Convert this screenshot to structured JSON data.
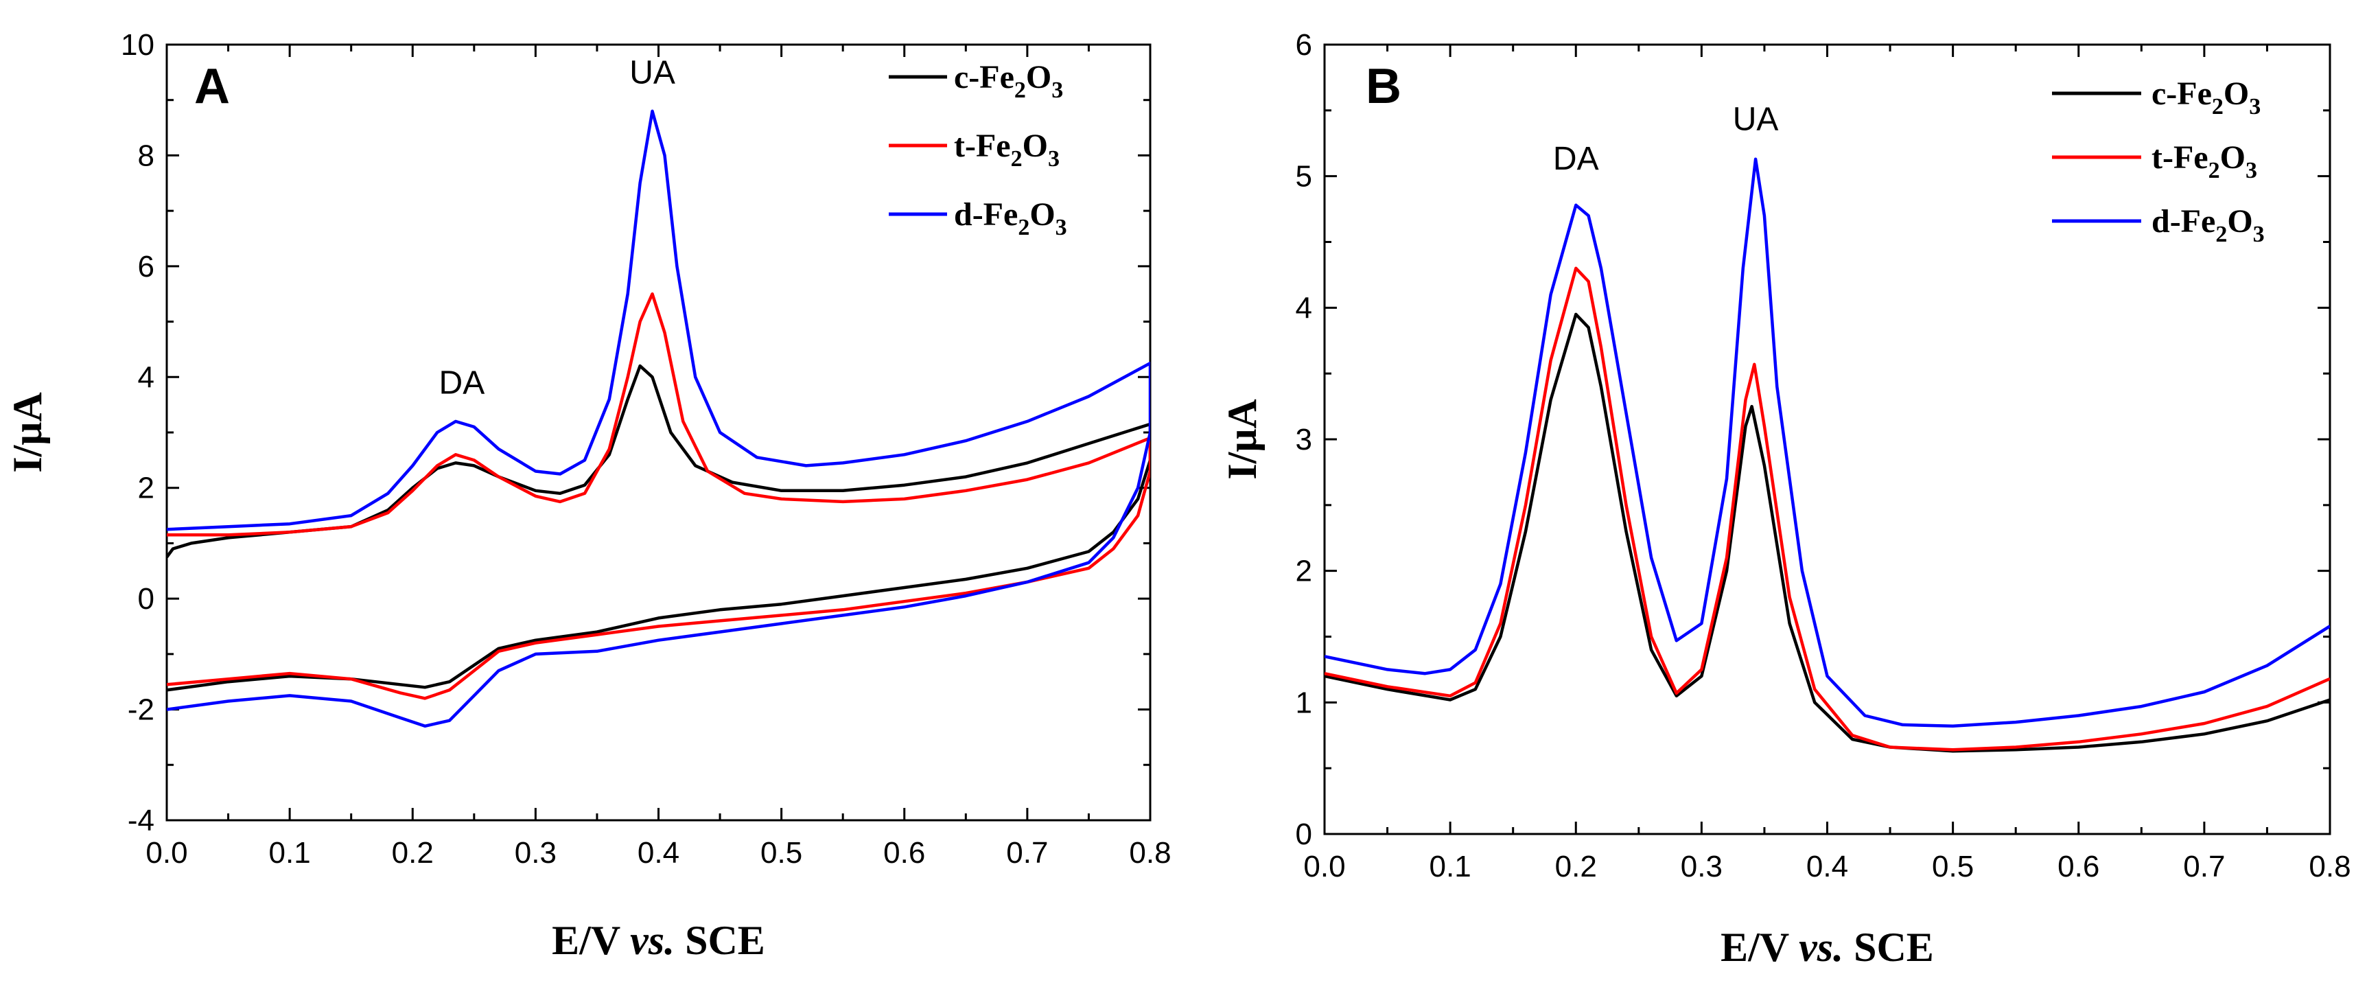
{
  "chart_data": [
    {
      "type": "line",
      "panel_label": "A",
      "xlabel": {
        "prefix": "E/V ",
        "italic": "vs.",
        "suffix": " SCE"
      },
      "ylabel": "I/μA",
      "xlim": [
        0.0,
        0.8
      ],
      "ylim": [
        -4,
        10
      ],
      "xticks": [
        0.0,
        0.1,
        0.2,
        0.3,
        0.4,
        0.5,
        0.6,
        0.7,
        0.8
      ],
      "yticks": [
        -4,
        -2,
        0,
        2,
        4,
        6,
        8,
        10
      ],
      "xtick_labels": [
        "0.0",
        "0.1",
        "0.2",
        "0.3",
        "0.4",
        "0.5",
        "0.6",
        "0.7",
        "0.8"
      ],
      "ytick_labels": [
        "-4",
        "-2",
        "0",
        "2",
        "4",
        "6",
        "8",
        "10"
      ],
      "legend_position": "top-right",
      "annotations": [
        {
          "text": "DA",
          "x": 0.24,
          "y": 3.7
        },
        {
          "text": "UA",
          "x": 0.395,
          "y": 9.3
        }
      ],
      "series": [
        {
          "name": "c-Fe2O3",
          "legend_main": "c-Fe",
          "legend_sub1": "2",
          "legend_mid": "O",
          "legend_sub2": "3",
          "color": "#000000",
          "forward": [
            [
              0.0,
              0.75
            ],
            [
              0.005,
              0.9
            ],
            [
              0.02,
              1.0
            ],
            [
              0.05,
              1.1
            ],
            [
              0.1,
              1.2
            ],
            [
              0.15,
              1.3
            ],
            [
              0.18,
              1.6
            ],
            [
              0.2,
              2.0
            ],
            [
              0.22,
              2.35
            ],
            [
              0.235,
              2.45
            ],
            [
              0.25,
              2.4
            ],
            [
              0.27,
              2.2
            ],
            [
              0.3,
              1.95
            ],
            [
              0.32,
              1.9
            ],
            [
              0.34,
              2.05
            ],
            [
              0.36,
              2.6
            ],
            [
              0.375,
              3.6
            ],
            [
              0.385,
              4.2
            ],
            [
              0.395,
              4.0
            ],
            [
              0.41,
              3.0
            ],
            [
              0.43,
              2.4
            ],
            [
              0.46,
              2.1
            ],
            [
              0.5,
              1.95
            ],
            [
              0.55,
              1.95
            ],
            [
              0.6,
              2.05
            ],
            [
              0.65,
              2.2
            ],
            [
              0.7,
              2.45
            ],
            [
              0.75,
              2.8
            ],
            [
              0.8,
              3.15
            ]
          ],
          "reverse": [
            [
              0.8,
              2.5
            ],
            [
              0.79,
              1.8
            ],
            [
              0.77,
              1.2
            ],
            [
              0.75,
              0.85
            ],
            [
              0.7,
              0.55
            ],
            [
              0.65,
              0.35
            ],
            [
              0.6,
              0.2
            ],
            [
              0.55,
              0.05
            ],
            [
              0.5,
              -0.1
            ],
            [
              0.45,
              -0.2
            ],
            [
              0.4,
              -0.35
            ],
            [
              0.35,
              -0.6
            ],
            [
              0.3,
              -0.75
            ],
            [
              0.27,
              -0.9
            ],
            [
              0.25,
              -1.2
            ],
            [
              0.23,
              -1.5
            ],
            [
              0.21,
              -1.6
            ],
            [
              0.19,
              -1.55
            ],
            [
              0.15,
              -1.45
            ],
            [
              0.1,
              -1.4
            ],
            [
              0.05,
              -1.5
            ],
            [
              0.0,
              -1.65
            ]
          ]
        },
        {
          "name": "t-Fe2O3",
          "legend_main": "t-Fe",
          "legend_sub1": "2",
          "legend_mid": "O",
          "legend_sub2": "3",
          "color": "#ff0000",
          "forward": [
            [
              0.0,
              1.15
            ],
            [
              0.05,
              1.15
            ],
            [
              0.1,
              1.2
            ],
            [
              0.15,
              1.3
            ],
            [
              0.18,
              1.55
            ],
            [
              0.2,
              1.95
            ],
            [
              0.22,
              2.4
            ],
            [
              0.235,
              2.6
            ],
            [
              0.25,
              2.5
            ],
            [
              0.27,
              2.2
            ],
            [
              0.3,
              1.85
            ],
            [
              0.32,
              1.75
            ],
            [
              0.34,
              1.9
            ],
            [
              0.36,
              2.7
            ],
            [
              0.375,
              4.0
            ],
            [
              0.385,
              5.0
            ],
            [
              0.395,
              5.5
            ],
            [
              0.405,
              4.8
            ],
            [
              0.42,
              3.2
            ],
            [
              0.44,
              2.3
            ],
            [
              0.47,
              1.9
            ],
            [
              0.5,
              1.8
            ],
            [
              0.55,
              1.75
            ],
            [
              0.6,
              1.8
            ],
            [
              0.65,
              1.95
            ],
            [
              0.7,
              2.15
            ],
            [
              0.75,
              2.45
            ],
            [
              0.8,
              2.9
            ]
          ],
          "reverse": [
            [
              0.8,
              2.3
            ],
            [
              0.79,
              1.5
            ],
            [
              0.77,
              0.9
            ],
            [
              0.75,
              0.55
            ],
            [
              0.7,
              0.3
            ],
            [
              0.65,
              0.1
            ],
            [
              0.6,
              -0.05
            ],
            [
              0.55,
              -0.2
            ],
            [
              0.5,
              -0.3
            ],
            [
              0.45,
              -0.4
            ],
            [
              0.4,
              -0.5
            ],
            [
              0.35,
              -0.65
            ],
            [
              0.3,
              -0.8
            ],
            [
              0.27,
              -0.95
            ],
            [
              0.25,
              -1.3
            ],
            [
              0.23,
              -1.65
            ],
            [
              0.21,
              -1.8
            ],
            [
              0.19,
              -1.7
            ],
            [
              0.15,
              -1.45
            ],
            [
              0.1,
              -1.35
            ],
            [
              0.05,
              -1.45
            ],
            [
              0.0,
              -1.55
            ]
          ]
        },
        {
          "name": "d-Fe2O3",
          "legend_main": "d-Fe",
          "legend_sub1": "2",
          "legend_mid": "O",
          "legend_sub2": "3",
          "color": "#0000ff",
          "forward": [
            [
              0.0,
              1.25
            ],
            [
              0.05,
              1.3
            ],
            [
              0.1,
              1.35
            ],
            [
              0.15,
              1.5
            ],
            [
              0.18,
              1.9
            ],
            [
              0.2,
              2.4
            ],
            [
              0.22,
              3.0
            ],
            [
              0.235,
              3.2
            ],
            [
              0.25,
              3.1
            ],
            [
              0.27,
              2.7
            ],
            [
              0.3,
              2.3
            ],
            [
              0.32,
              2.25
            ],
            [
              0.34,
              2.5
            ],
            [
              0.36,
              3.6
            ],
            [
              0.375,
              5.5
            ],
            [
              0.385,
              7.5
            ],
            [
              0.395,
              8.8
            ],
            [
              0.405,
              8.0
            ],
            [
              0.415,
              6.0
            ],
            [
              0.43,
              4.0
            ],
            [
              0.45,
              3.0
            ],
            [
              0.48,
              2.55
            ],
            [
              0.52,
              2.4
            ],
            [
              0.55,
              2.45
            ],
            [
              0.6,
              2.6
            ],
            [
              0.65,
              2.85
            ],
            [
              0.7,
              3.2
            ],
            [
              0.75,
              3.65
            ],
            [
              0.8,
              4.25
            ]
          ],
          "reverse": [
            [
              0.8,
              3.0
            ],
            [
              0.79,
              2.0
            ],
            [
              0.77,
              1.1
            ],
            [
              0.75,
              0.65
            ],
            [
              0.7,
              0.3
            ],
            [
              0.65,
              0.05
            ],
            [
              0.6,
              -0.15
            ],
            [
              0.55,
              -0.3
            ],
            [
              0.5,
              -0.45
            ],
            [
              0.45,
              -0.6
            ],
            [
              0.4,
              -0.75
            ],
            [
              0.35,
              -0.95
            ],
            [
              0.3,
              -1.0
            ],
            [
              0.27,
              -1.3
            ],
            [
              0.25,
              -1.75
            ],
            [
              0.23,
              -2.2
            ],
            [
              0.21,
              -2.3
            ],
            [
              0.19,
              -2.15
            ],
            [
              0.15,
              -1.85
            ],
            [
              0.1,
              -1.75
            ],
            [
              0.05,
              -1.85
            ],
            [
              0.0,
              -2.0
            ]
          ]
        }
      ]
    },
    {
      "type": "line",
      "panel_label": "B",
      "xlabel": {
        "prefix": "E/V ",
        "italic": "vs.",
        "suffix": " SCE"
      },
      "ylabel": "I/μA",
      "xlim": [
        0.0,
        0.8
      ],
      "ylim": [
        0,
        6
      ],
      "xticks": [
        0.0,
        0.1,
        0.2,
        0.3,
        0.4,
        0.5,
        0.6,
        0.7,
        0.8
      ],
      "yticks": [
        0,
        1,
        2,
        3,
        4,
        5,
        6
      ],
      "xtick_labels": [
        "0.0",
        "0.1",
        "0.2",
        "0.3",
        "0.4",
        "0.5",
        "0.6",
        "0.7",
        "0.8"
      ],
      "ytick_labels": [
        "0",
        "1",
        "2",
        "3",
        "4",
        "5",
        "6"
      ],
      "legend_position": "top-right",
      "annotations": [
        {
          "text": "DA",
          "x": 0.2,
          "y": 5.05
        },
        {
          "text": "UA",
          "x": 0.343,
          "y": 5.35
        }
      ],
      "series": [
        {
          "name": "c-Fe2O3",
          "legend_main": "c-Fe",
          "legend_sub1": "2",
          "legend_mid": "O",
          "legend_sub2": "3",
          "color": "#000000",
          "forward": [
            [
              0.0,
              1.2
            ],
            [
              0.05,
              1.1
            ],
            [
              0.1,
              1.02
            ],
            [
              0.12,
              1.1
            ],
            [
              0.14,
              1.5
            ],
            [
              0.16,
              2.3
            ],
            [
              0.18,
              3.3
            ],
            [
              0.2,
              3.95
            ],
            [
              0.21,
              3.85
            ],
            [
              0.22,
              3.4
            ],
            [
              0.24,
              2.3
            ],
            [
              0.26,
              1.4
            ],
            [
              0.28,
              1.05
            ],
            [
              0.3,
              1.2
            ],
            [
              0.32,
              2.0
            ],
            [
              0.335,
              3.1
            ],
            [
              0.34,
              3.25
            ],
            [
              0.35,
              2.8
            ],
            [
              0.37,
              1.6
            ],
            [
              0.39,
              1.0
            ],
            [
              0.42,
              0.72
            ],
            [
              0.45,
              0.66
            ],
            [
              0.5,
              0.63
            ],
            [
              0.55,
              0.64
            ],
            [
              0.6,
              0.66
            ],
            [
              0.65,
              0.7
            ],
            [
              0.7,
              0.76
            ],
            [
              0.75,
              0.86
            ],
            [
              0.8,
              1.02
            ]
          ]
        },
        {
          "name": "t-Fe2O3",
          "legend_main": "t-Fe",
          "legend_sub1": "2",
          "legend_mid": "O",
          "legend_sub2": "3",
          "color": "#ff0000",
          "forward": [
            [
              0.0,
              1.22
            ],
            [
              0.05,
              1.12
            ],
            [
              0.1,
              1.05
            ],
            [
              0.12,
              1.15
            ],
            [
              0.14,
              1.6
            ],
            [
              0.16,
              2.5
            ],
            [
              0.18,
              3.6
            ],
            [
              0.2,
              4.3
            ],
            [
              0.21,
              4.2
            ],
            [
              0.22,
              3.7
            ],
            [
              0.24,
              2.5
            ],
            [
              0.26,
              1.5
            ],
            [
              0.28,
              1.07
            ],
            [
              0.3,
              1.25
            ],
            [
              0.32,
              2.1
            ],
            [
              0.335,
              3.3
            ],
            [
              0.342,
              3.57
            ],
            [
              0.35,
              3.1
            ],
            [
              0.37,
              1.8
            ],
            [
              0.39,
              1.1
            ],
            [
              0.42,
              0.75
            ],
            [
              0.45,
              0.66
            ],
            [
              0.5,
              0.64
            ],
            [
              0.55,
              0.66
            ],
            [
              0.6,
              0.7
            ],
            [
              0.65,
              0.76
            ],
            [
              0.7,
              0.84
            ],
            [
              0.75,
              0.97
            ],
            [
              0.8,
              1.18
            ]
          ]
        },
        {
          "name": "d-Fe2O3",
          "legend_main": "d-Fe",
          "legend_sub1": "2",
          "legend_mid": "O",
          "legend_sub2": "3",
          "color": "#0000ff",
          "forward": [
            [
              0.0,
              1.35
            ],
            [
              0.05,
              1.25
            ],
            [
              0.08,
              1.22
            ],
            [
              0.1,
              1.25
            ],
            [
              0.12,
              1.4
            ],
            [
              0.14,
              1.9
            ],
            [
              0.16,
              2.9
            ],
            [
              0.18,
              4.1
            ],
            [
              0.2,
              4.78
            ],
            [
              0.21,
              4.7
            ],
            [
              0.22,
              4.3
            ],
            [
              0.24,
              3.2
            ],
            [
              0.26,
              2.1
            ],
            [
              0.28,
              1.47
            ],
            [
              0.3,
              1.6
            ],
            [
              0.32,
              2.7
            ],
            [
              0.333,
              4.3
            ],
            [
              0.343,
              5.13
            ],
            [
              0.35,
              4.7
            ],
            [
              0.36,
              3.4
            ],
            [
              0.38,
              2.0
            ],
            [
              0.4,
              1.2
            ],
            [
              0.43,
              0.9
            ],
            [
              0.46,
              0.83
            ],
            [
              0.5,
              0.82
            ],
            [
              0.55,
              0.85
            ],
            [
              0.6,
              0.9
            ],
            [
              0.65,
              0.97
            ],
            [
              0.7,
              1.08
            ],
            [
              0.75,
              1.28
            ],
            [
              0.8,
              1.58
            ]
          ]
        }
      ]
    }
  ]
}
